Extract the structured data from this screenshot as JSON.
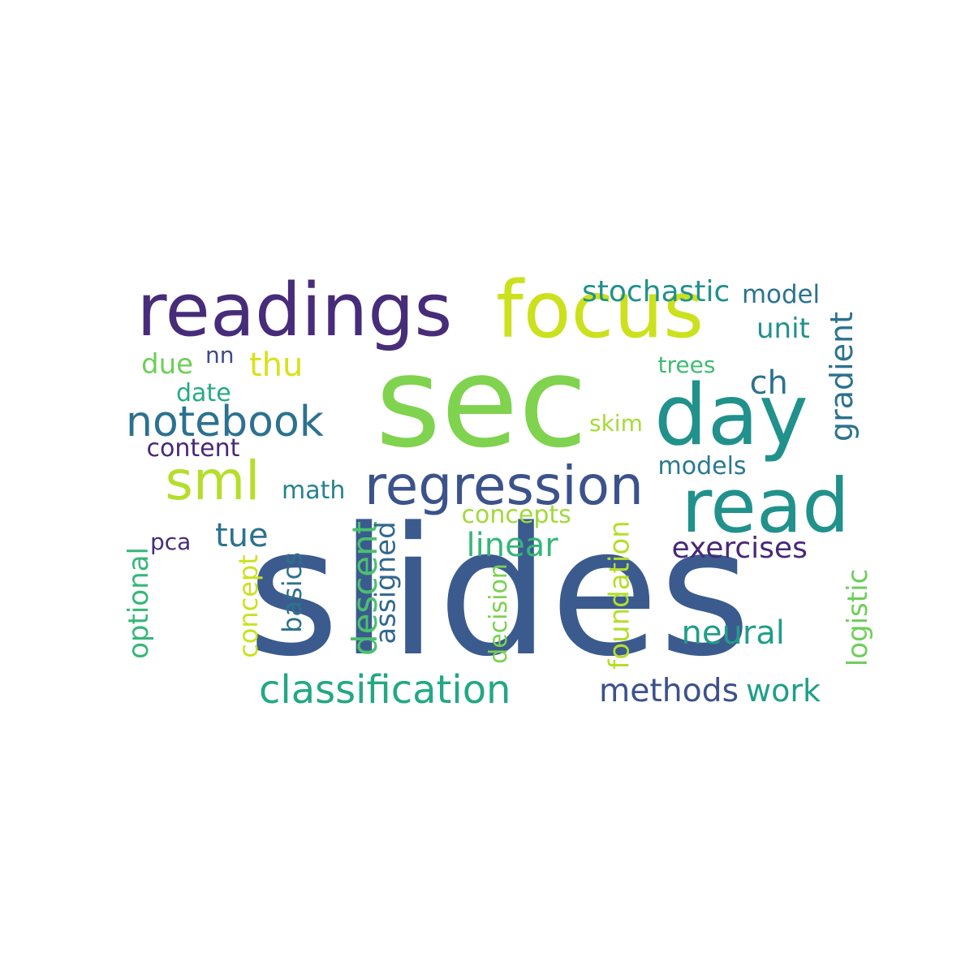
{
  "words": [
    {
      "text": "slides",
      "color": "#3b5b8e",
      "vertical": false
    },
    {
      "text": "sec",
      "color": "#7fd34e",
      "vertical": false
    },
    {
      "text": "readings",
      "color": "#472c7a",
      "vertical": false
    },
    {
      "text": "focus",
      "color": "#cbe11e",
      "vertical": false
    },
    {
      "text": "day",
      "color": "#21918c",
      "vertical": false
    },
    {
      "text": "read",
      "color": "#21918c",
      "vertical": false
    },
    {
      "text": "sml",
      "color": "#b5de2b",
      "vertical": false
    },
    {
      "text": "regression",
      "color": "#3b528b",
      "vertical": false
    },
    {
      "text": "notebook",
      "color": "#2c728e",
      "vertical": false
    },
    {
      "text": "classification",
      "color": "#22a884",
      "vertical": false
    },
    {
      "text": "thu",
      "color": "#d8e219",
      "vertical": false
    },
    {
      "text": "tue",
      "color": "#2c728e",
      "vertical": false
    },
    {
      "text": "ch",
      "color": "#2c728e",
      "vertical": false
    },
    {
      "text": "methods",
      "color": "#3b528b",
      "vertical": false
    },
    {
      "text": "neural",
      "color": "#1f9e89",
      "vertical": false
    },
    {
      "text": "linear",
      "color": "#35b779",
      "vertical": false
    },
    {
      "text": "work",
      "color": "#1f9e89",
      "vertical": false
    },
    {
      "text": "exercises",
      "color": "#482878",
      "vertical": false
    },
    {
      "text": "stochastic",
      "color": "#21918c",
      "vertical": false
    },
    {
      "text": "model",
      "color": "#2c728e",
      "vertical": false
    },
    {
      "text": "unit",
      "color": "#21918c",
      "vertical": false
    },
    {
      "text": "due",
      "color": "#6ece58",
      "vertical": false
    },
    {
      "text": "nn",
      "color": "#3e4989",
      "vertical": false
    },
    {
      "text": "date",
      "color": "#25ab82",
      "vertical": false
    },
    {
      "text": "content",
      "color": "#482878",
      "vertical": false
    },
    {
      "text": "math",
      "color": "#26828e",
      "vertical": false
    },
    {
      "text": "concepts",
      "color": "#a0da39",
      "vertical": false
    },
    {
      "text": "pca",
      "color": "#472c7a",
      "vertical": false
    },
    {
      "text": "models",
      "color": "#2a788e",
      "vertical": false
    },
    {
      "text": "trees",
      "color": "#3fbc73",
      "vertical": false
    },
    {
      "text": "skim",
      "color": "#a5db36",
      "vertical": false
    },
    {
      "text": "gradient",
      "color": "#2c728e",
      "vertical": true
    },
    {
      "text": "descent",
      "color": "#4ac16d",
      "vertical": true
    },
    {
      "text": "assigned",
      "color": "#31688e",
      "vertical": true
    },
    {
      "text": "basics",
      "color": "#2c728e",
      "vertical": true
    },
    {
      "text": "concept",
      "color": "#cbe11e",
      "vertical": true
    },
    {
      "text": "optional",
      "color": "#35b779",
      "vertical": true
    },
    {
      "text": "decision",
      "color": "#7ad151",
      "vertical": true
    },
    {
      "text": "foundation",
      "color": "#b5de2b",
      "vertical": true
    },
    {
      "text": "logistic",
      "color": "#6ece58",
      "vertical": true
    }
  ]
}
